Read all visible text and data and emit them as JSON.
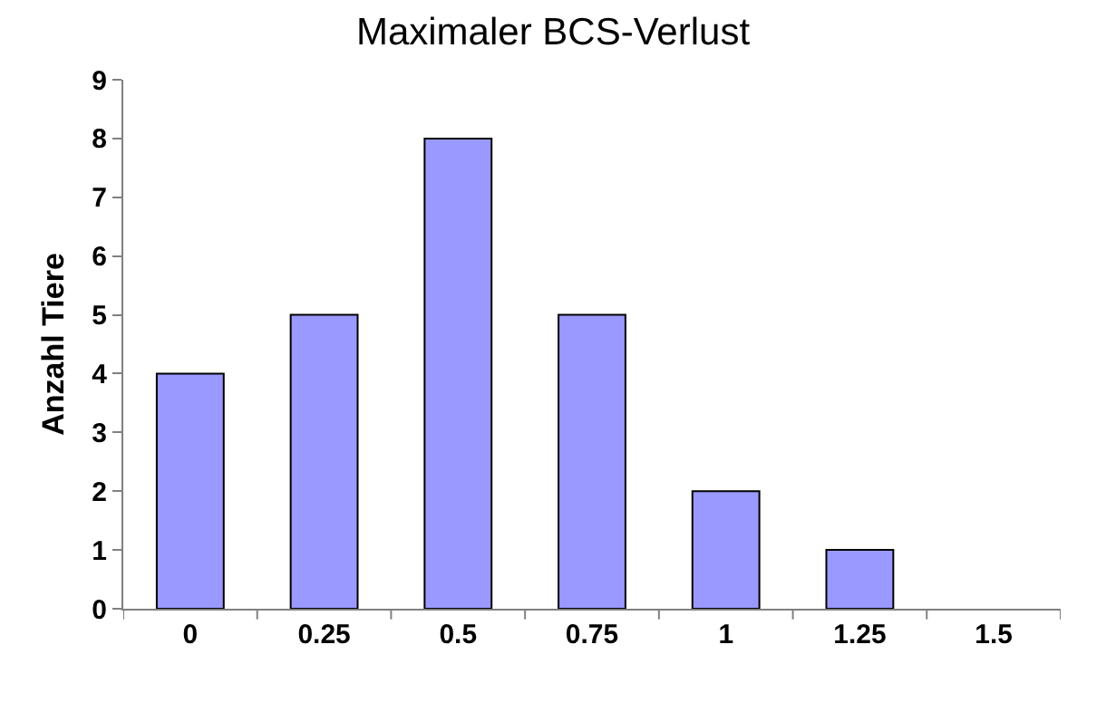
{
  "chart_data": {
    "type": "bar",
    "title": "Maximaler BCS-Verlust",
    "ylabel": "Anzahl Tiere",
    "categories": [
      "0",
      "0.25",
      "0.5",
      "0.75",
      "1",
      "1.25",
      "1.5"
    ],
    "values": [
      4,
      5,
      8,
      5,
      2,
      1,
      0
    ],
    "color": "#9999ff",
    "ylim": [
      0,
      9
    ],
    "yticks": [
      0,
      1,
      2,
      3,
      4,
      5,
      6,
      7,
      8,
      9
    ]
  }
}
